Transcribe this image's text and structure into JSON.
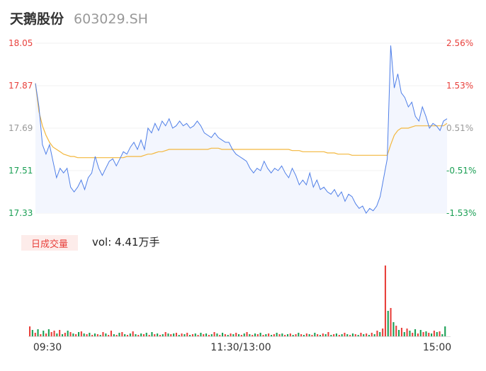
{
  "header": {
    "name": "天鹅股份",
    "code": "603029.SH"
  },
  "colors": {
    "up": "#e8413c",
    "down": "#1a9f54",
    "neutral": "#999999",
    "price_line": "#4f7fe8",
    "avg_line": "#f3b73d",
    "area_fill": "#f3f6fe"
  },
  "volume": {
    "tab_label": "日成交量",
    "summary": "vol: 4.41万手"
  },
  "chart_data": [
    {
      "type": "line",
      "title": "",
      "x_ticks": [
        "09:30",
        "11:30/13:00",
        "15:00"
      ],
      "y_left_ticks": [
        "18.05",
        "17.87",
        "17.69",
        "17.51",
        "17.33"
      ],
      "y_right_ticks": [
        "2.56%",
        "1.53%",
        "0.51%",
        "-0.51%",
        "-1.53%"
      ],
      "ylim": [
        17.33,
        18.05
      ],
      "prev_close": 17.6,
      "series": [
        {
          "role": "price",
          "values": [
            17.88,
            17.78,
            17.62,
            17.58,
            17.62,
            17.55,
            17.48,
            17.52,
            17.5,
            17.52,
            17.44,
            17.42,
            17.44,
            17.47,
            17.43,
            17.48,
            17.5,
            17.57,
            17.52,
            17.49,
            17.52,
            17.55,
            17.56,
            17.53,
            17.56,
            17.59,
            17.58,
            17.61,
            17.63,
            17.6,
            17.64,
            17.6,
            17.69,
            17.67,
            17.71,
            17.68,
            17.72,
            17.7,
            17.73,
            17.69,
            17.7,
            17.72,
            17.7,
            17.71,
            17.69,
            17.7,
            17.72,
            17.7,
            17.67,
            17.66,
            17.65,
            17.67,
            17.65,
            17.64,
            17.63,
            17.63,
            17.6,
            17.58,
            17.57,
            17.56,
            17.55,
            17.52,
            17.5,
            17.52,
            17.51,
            17.55,
            17.52,
            17.5,
            17.52,
            17.51,
            17.53,
            17.5,
            17.48,
            17.52,
            17.49,
            17.45,
            17.47,
            17.45,
            17.5,
            17.44,
            17.47,
            17.43,
            17.44,
            17.42,
            17.41,
            17.43,
            17.4,
            17.42,
            17.38,
            17.41,
            17.4,
            17.37,
            17.35,
            17.36,
            17.33,
            17.35,
            17.34,
            17.36,
            17.4,
            17.48,
            17.56,
            18.04,
            17.86,
            17.92,
            17.84,
            17.82,
            17.78,
            17.8,
            17.74,
            17.72,
            17.78,
            17.74,
            17.69,
            17.71,
            17.7,
            17.68,
            17.72,
            17.73
          ]
        },
        {
          "role": "average",
          "values": [
            17.88,
            17.76,
            17.7,
            17.66,
            17.63,
            17.61,
            17.6,
            17.59,
            17.58,
            17.575,
            17.57,
            17.57,
            17.565,
            17.565,
            17.565,
            17.565,
            17.565,
            17.565,
            17.565,
            17.565,
            17.565,
            17.565,
            17.565,
            17.565,
            17.565,
            17.565,
            17.57,
            17.57,
            17.57,
            17.57,
            17.57,
            17.575,
            17.58,
            17.58,
            17.585,
            17.59,
            17.59,
            17.595,
            17.6,
            17.6,
            17.6,
            17.6,
            17.6,
            17.6,
            17.6,
            17.6,
            17.6,
            17.6,
            17.6,
            17.6,
            17.605,
            17.605,
            17.605,
            17.6,
            17.6,
            17.6,
            17.6,
            17.6,
            17.6,
            17.6,
            17.6,
            17.6,
            17.6,
            17.6,
            17.6,
            17.6,
            17.6,
            17.6,
            17.6,
            17.6,
            17.6,
            17.6,
            17.6,
            17.595,
            17.595,
            17.595,
            17.59,
            17.59,
            17.59,
            17.59,
            17.59,
            17.59,
            17.59,
            17.585,
            17.585,
            17.585,
            17.58,
            17.58,
            17.58,
            17.58,
            17.575,
            17.575,
            17.575,
            17.575,
            17.575,
            17.575,
            17.575,
            17.575,
            17.575,
            17.575,
            17.575,
            17.62,
            17.66,
            17.68,
            17.69,
            17.69,
            17.69,
            17.695,
            17.7,
            17.7,
            17.7,
            17.7,
            17.7,
            17.7,
            17.7,
            17.7,
            17.7,
            17.71
          ]
        }
      ]
    },
    {
      "type": "bar",
      "title": "",
      "values": [
        14,
        9,
        5,
        10,
        3,
        8,
        4,
        10,
        6,
        8,
        4,
        9,
        3,
        5,
        8,
        6,
        4,
        3,
        6,
        7,
        4,
        3,
        5,
        2,
        4,
        3,
        2,
        6,
        4,
        2,
        8,
        3,
        2,
        5,
        6,
        3,
        2,
        4,
        7,
        3,
        2,
        4,
        3,
        5,
        2,
        6,
        3,
        4,
        2,
        3,
        6,
        4,
        3,
        4,
        5,
        2,
        4,
        3,
        5,
        2,
        3,
        4,
        2,
        5,
        3,
        4,
        2,
        3,
        6,
        4,
        2,
        5,
        3,
        2,
        4,
        3,
        5,
        3,
        2,
        4,
        6,
        3,
        2,
        4,
        3,
        5,
        2,
        3,
        4,
        2,
        3,
        5,
        3,
        4,
        2,
        3,
        4,
        2,
        3,
        5,
        3,
        2,
        4,
        3,
        2,
        5,
        3,
        2,
        4,
        3,
        6,
        2,
        3,
        4,
        2,
        3,
        5,
        3,
        2,
        4,
        3,
        2,
        5,
        3,
        4,
        2,
        5,
        3,
        8,
        6,
        11,
        100,
        36,
        40,
        20,
        15,
        9,
        12,
        6,
        11,
        8,
        5,
        10,
        4,
        9,
        6,
        7,
        5,
        4,
        8,
        6,
        7,
        3,
        14
      ],
      "colors_by_index_note": "",
      "up_flags": [
        1,
        0,
        1,
        0,
        1,
        0,
        1,
        0,
        1,
        1,
        0,
        1,
        0,
        1,
        0,
        1,
        0,
        1,
        0,
        1,
        0,
        1,
        0,
        1,
        0,
        1,
        0,
        1,
        0,
        1,
        1,
        0,
        1,
        0,
        1,
        0,
        1,
        0,
        1,
        0,
        1,
        0,
        1,
        0,
        1,
        0,
        1,
        0,
        1,
        0,
        1,
        0,
        1,
        0,
        1,
        0,
        1,
        0,
        1,
        0,
        1,
        0,
        1,
        0,
        1,
        0,
        1,
        0,
        1,
        0,
        1,
        0,
        1,
        0,
        1,
        0,
        1,
        0,
        1,
        0,
        1,
        0,
        1,
        0,
        1,
        0,
        1,
        0,
        1,
        0,
        1,
        0,
        1,
        0,
        1,
        0,
        1,
        0,
        1,
        0,
        1,
        0,
        1,
        0,
        1,
        0,
        1,
        0,
        1,
        0,
        1,
        0,
        1,
        0,
        1,
        0,
        1,
        0,
        1,
        0,
        1,
        0,
        1,
        0,
        1,
        0,
        1,
        0,
        1,
        0,
        1,
        1,
        0,
        1,
        0,
        1,
        0,
        1,
        0,
        1,
        0,
        1,
        0,
        1,
        0,
        1,
        0,
        1,
        0,
        1,
        0,
        1,
        0,
        0
      ]
    }
  ]
}
